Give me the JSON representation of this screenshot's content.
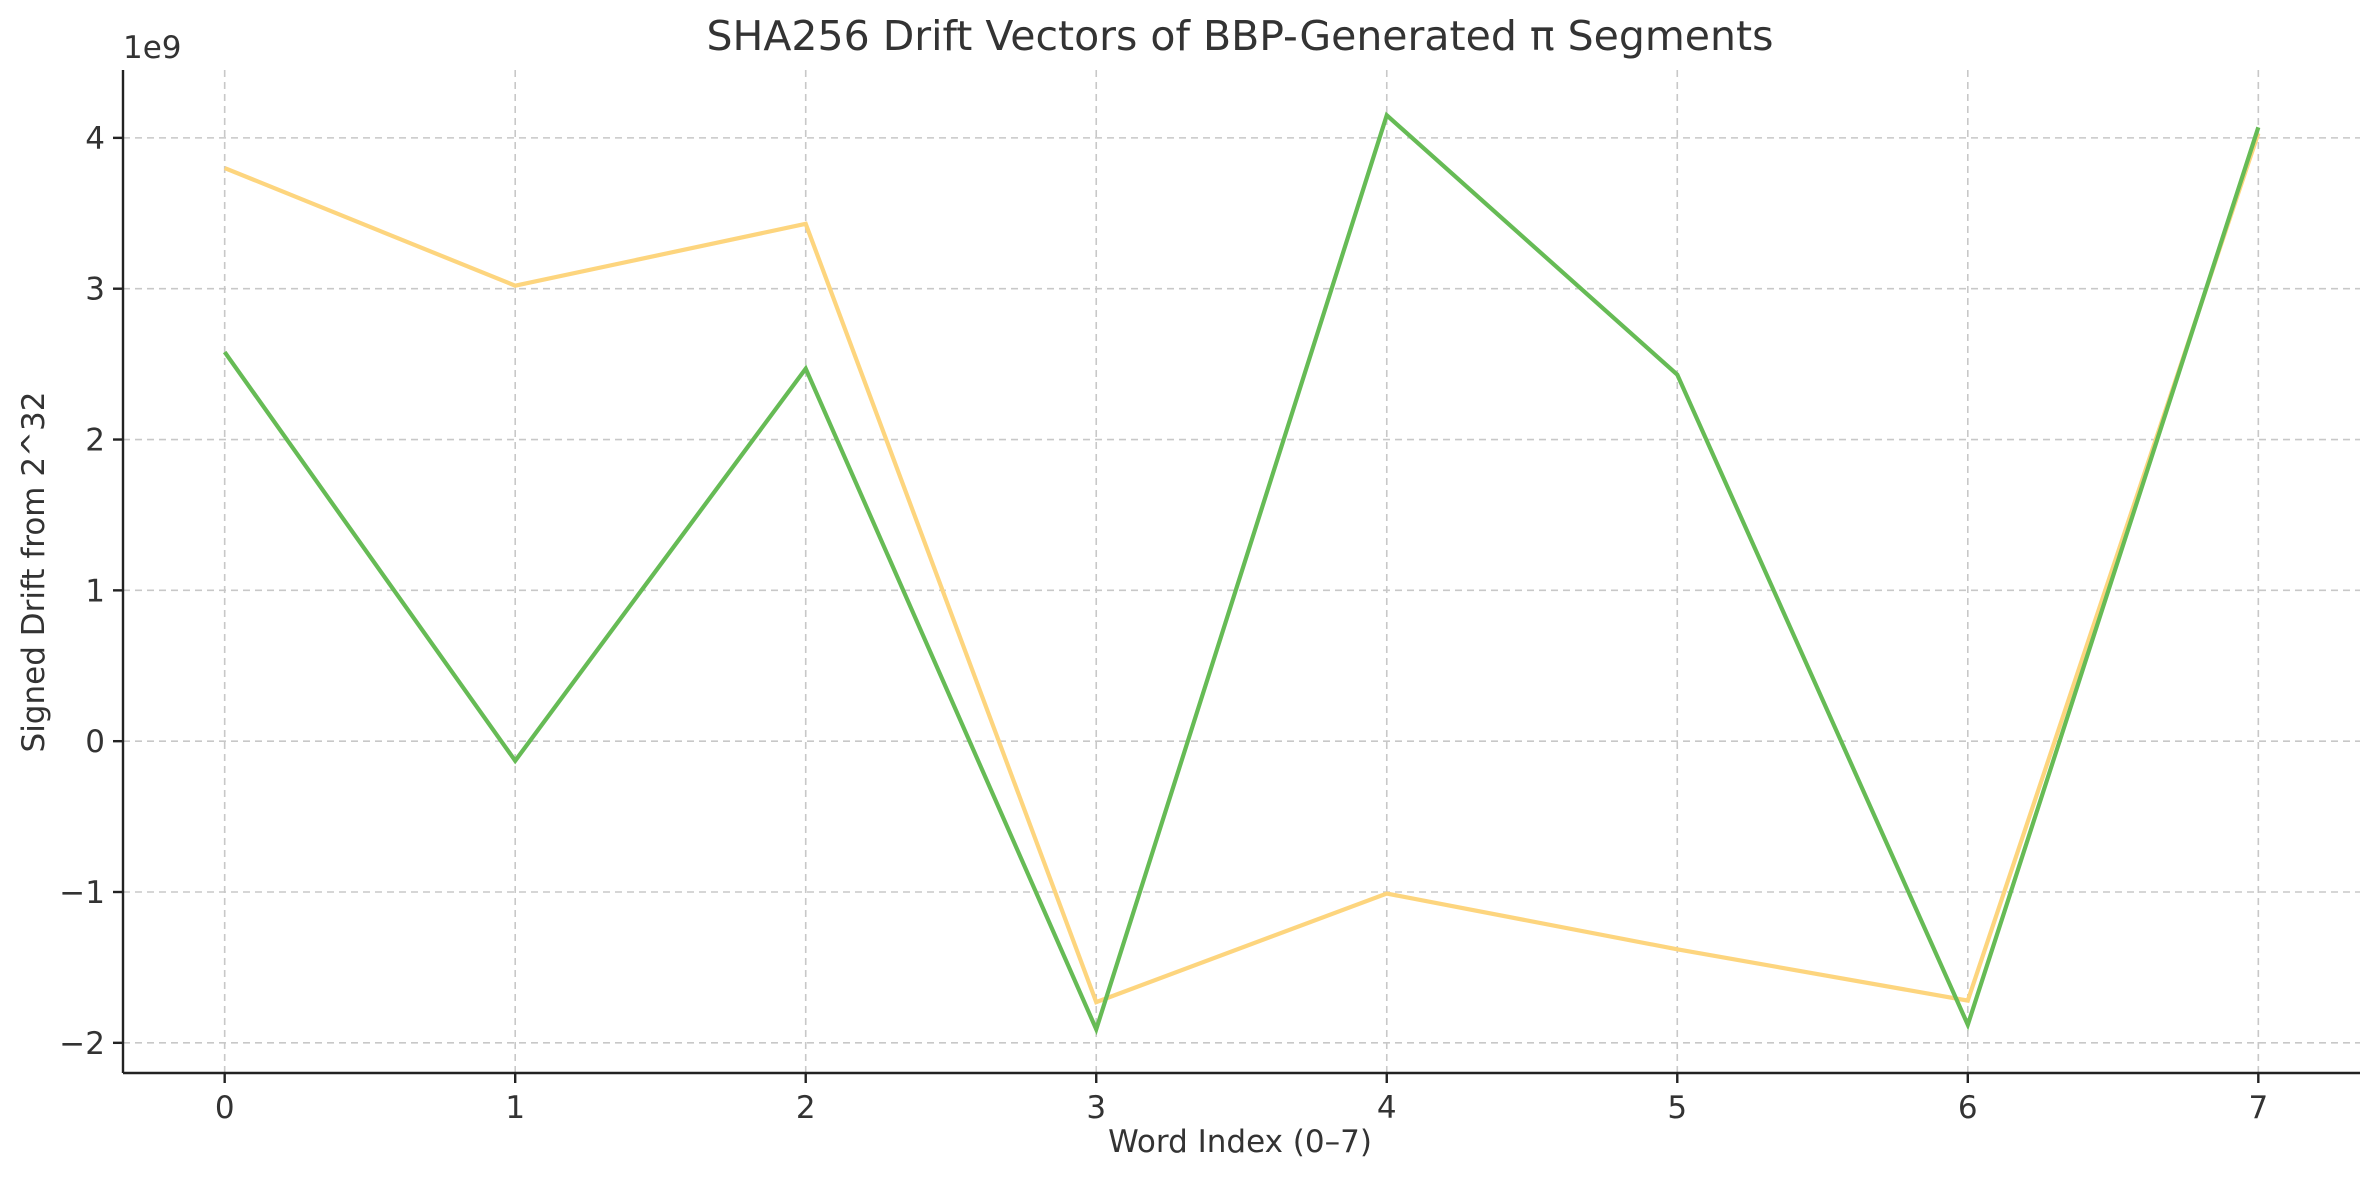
{
  "chart_data": {
    "type": "line",
    "title": "SHA256 Drift Vectors of BBP-Generated π Segments",
    "xlabel": "Word Index (0–7)",
    "ylabel": "Signed Drift from 2^32",
    "y_offset_label": "1e9",
    "x": [
      0,
      1,
      2,
      3,
      4,
      5,
      6,
      7
    ],
    "x_ticks": [
      "0",
      "1",
      "2",
      "3",
      "4",
      "5",
      "6",
      "7"
    ],
    "y_ticks": [
      {
        "value": -2,
        "label": "−2"
      },
      {
        "value": -1,
        "label": "−1"
      },
      {
        "value": 0,
        "label": "0"
      },
      {
        "value": 1,
        "label": "1"
      },
      {
        "value": 2,
        "label": "2"
      },
      {
        "value": 3,
        "label": "3"
      },
      {
        "value": 4,
        "label": "4"
      }
    ],
    "xlim": [
      -0.35,
      7.35
    ],
    "ylim": [
      -2.2,
      4.45
    ],
    "y_unit_scale": 1000000000,
    "grid": true,
    "legend": "none",
    "series": [
      {
        "color": "#fdd57e",
        "values": [
          3.8,
          3.02,
          3.43,
          -1.73,
          -1.01,
          -1.38,
          -1.72,
          4.03
        ]
      },
      {
        "color": "#66bb55",
        "values": [
          2.58,
          -0.13,
          2.47,
          -1.91,
          4.15,
          2.43,
          -1.88,
          4.07
        ]
      }
    ]
  }
}
